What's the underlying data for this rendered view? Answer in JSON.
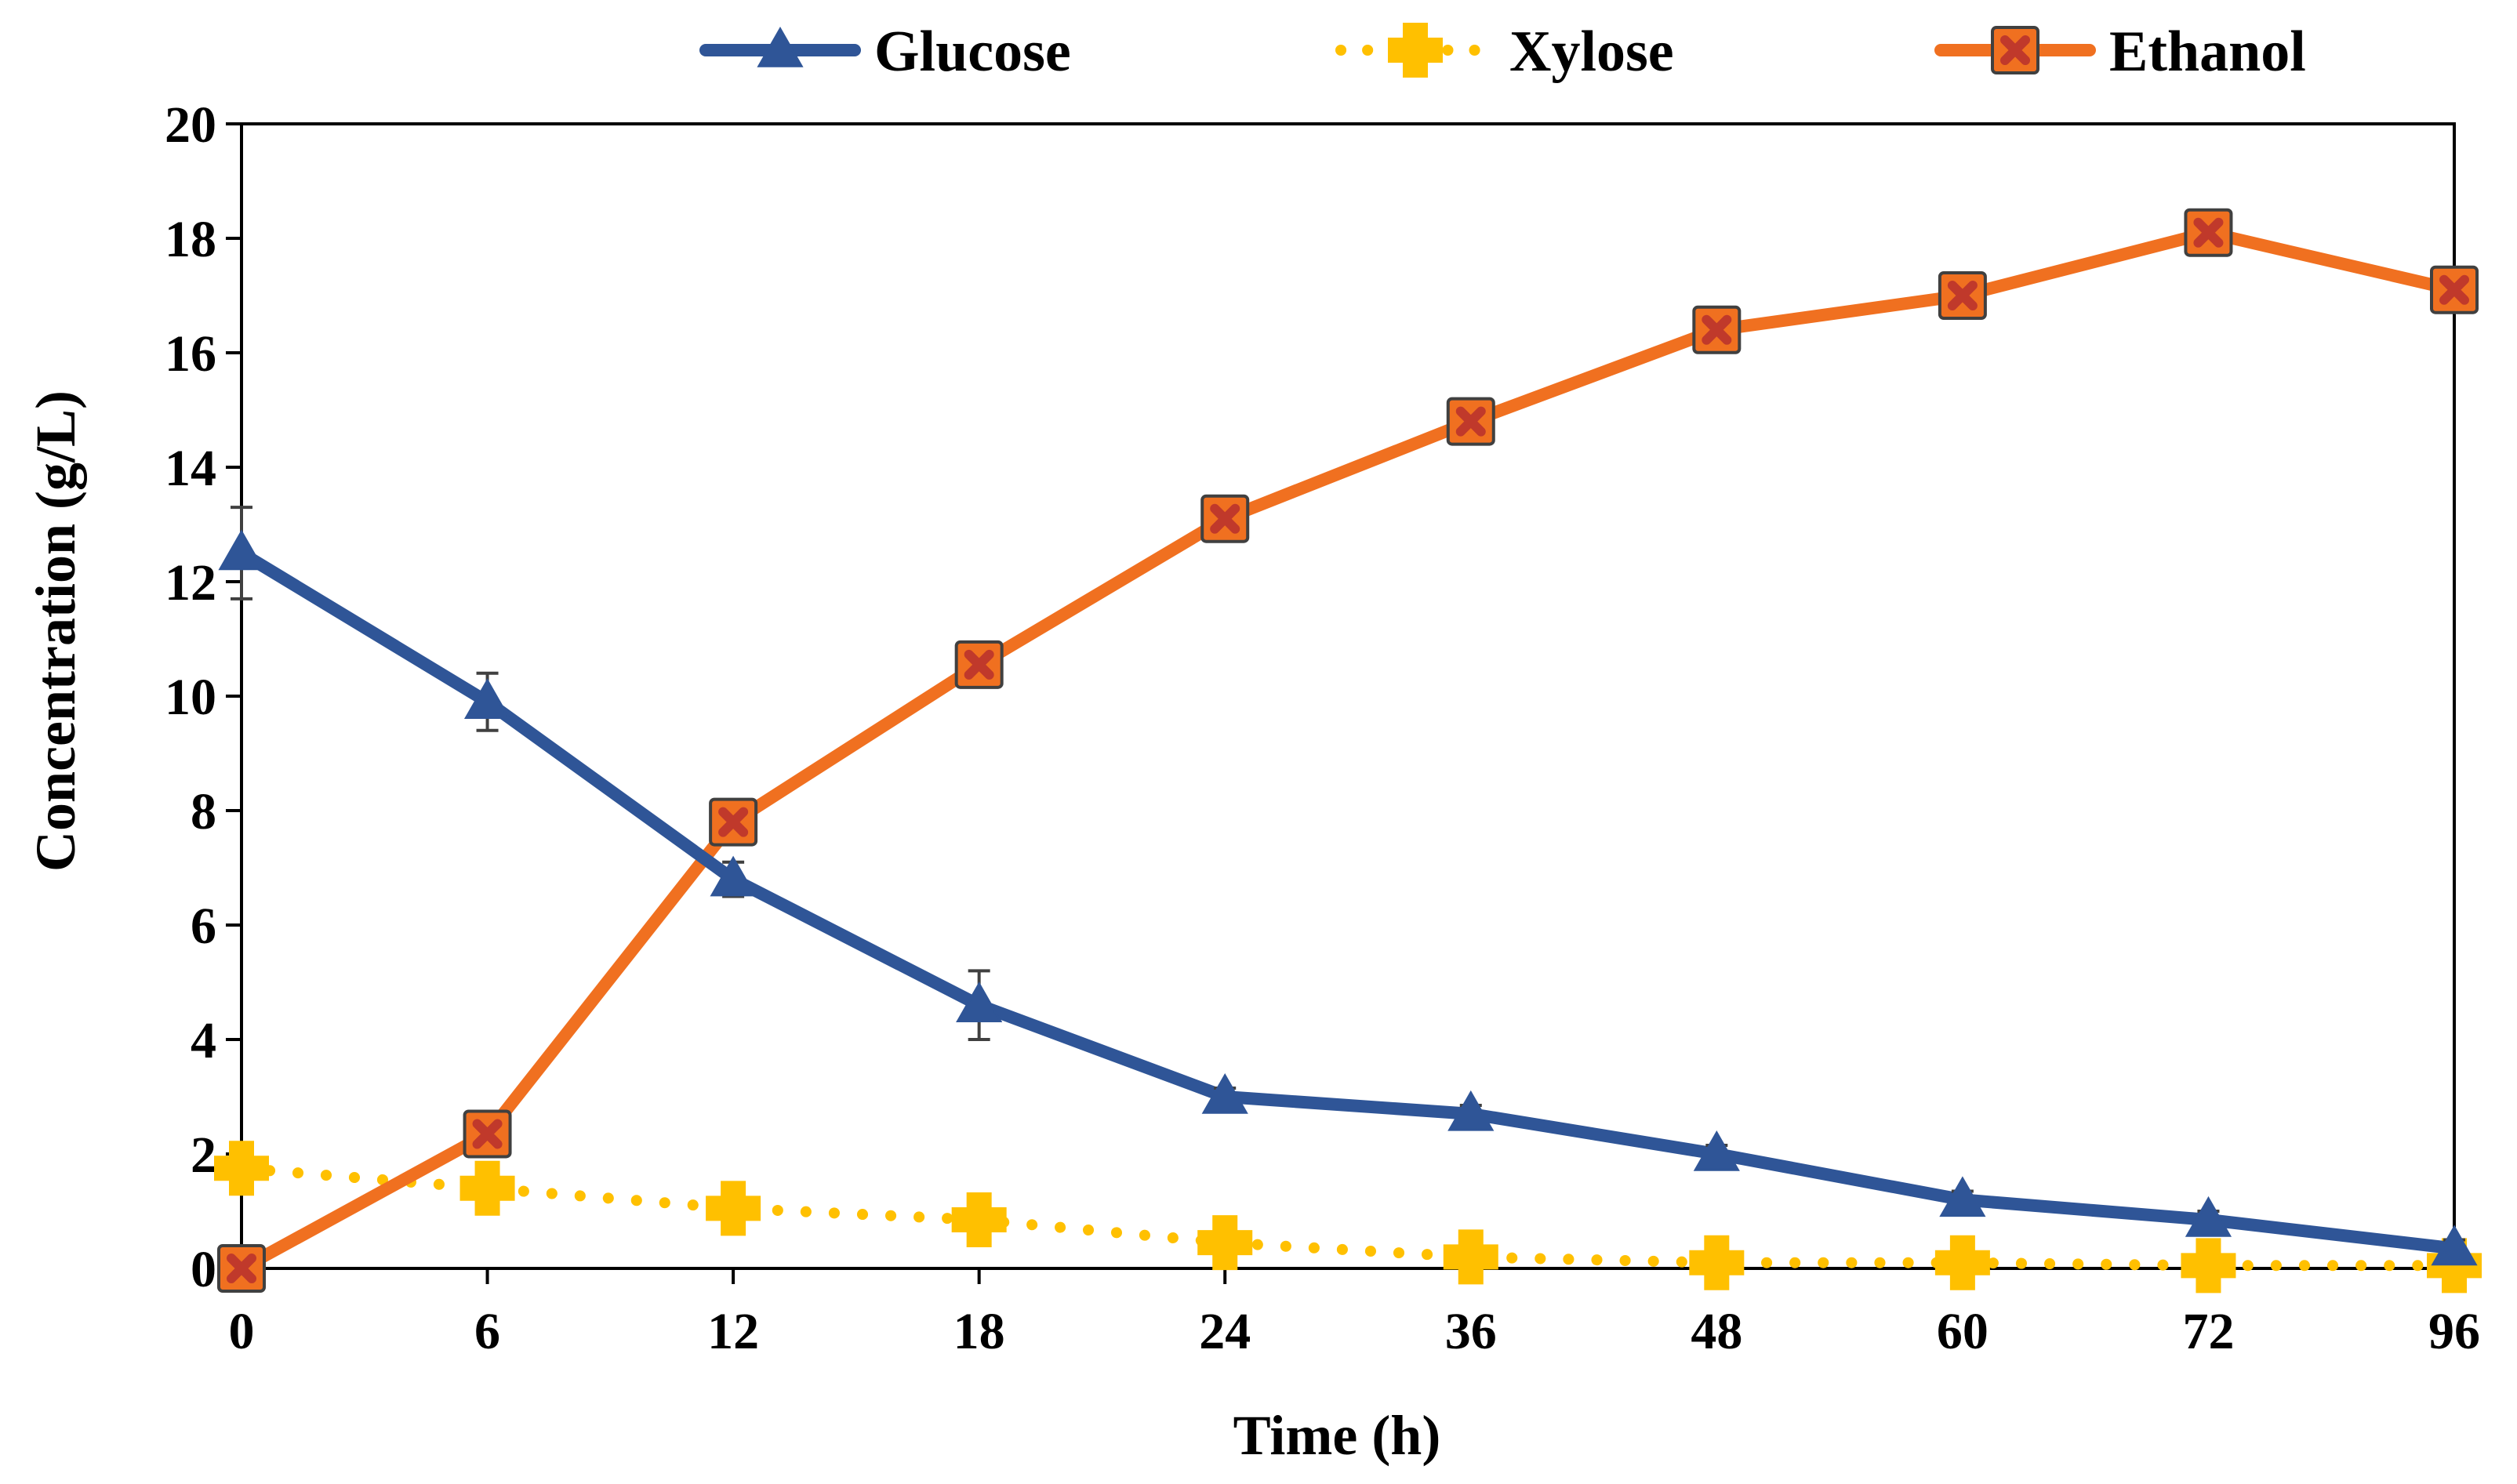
{
  "chart_data": {
    "type": "line",
    "title": "",
    "xlabel": "Time (h)",
    "ylabel": "Concentration (g/L)",
    "categories": [
      "0",
      "6",
      "12",
      "18",
      "24",
      "36",
      "48",
      "60",
      "72",
      "96"
    ],
    "ylim": [
      0,
      20
    ],
    "yticks": [
      0,
      2,
      4,
      6,
      8,
      10,
      12,
      14,
      16,
      18,
      20
    ],
    "ytick_labels": [
      "0",
      "2",
      "4",
      "6",
      "8",
      "10",
      "12",
      "14",
      "16",
      "18",
      "20"
    ],
    "grid": false,
    "legend_position": "top",
    "series": [
      {
        "name": "Glucose",
        "color": "#2F5597",
        "marker": "triangle",
        "line_style": "solid",
        "values": [
          12.5,
          9.9,
          6.8,
          4.6,
          3.0,
          2.7,
          2.0,
          1.2,
          0.85,
          0.35
        ],
        "errors": [
          0.8,
          0.5,
          0.3,
          0.6,
          0.15,
          0.15,
          0.15,
          0.15,
          0.15,
          0.15
        ]
      },
      {
        "name": "Xylose",
        "color": "#FFC000",
        "marker": "plus",
        "line_style": "dotted",
        "values": [
          1.75,
          1.4,
          1.05,
          0.85,
          0.45,
          0.2,
          0.1,
          0.1,
          0.05,
          0.05
        ]
      },
      {
        "name": "Ethanol",
        "color": "#F07020",
        "marker": "crossed-square",
        "line_style": "solid",
        "values": [
          0.0,
          2.35,
          7.8,
          10.55,
          13.1,
          14.8,
          16.4,
          17.0,
          18.1,
          17.1
        ]
      }
    ]
  }
}
